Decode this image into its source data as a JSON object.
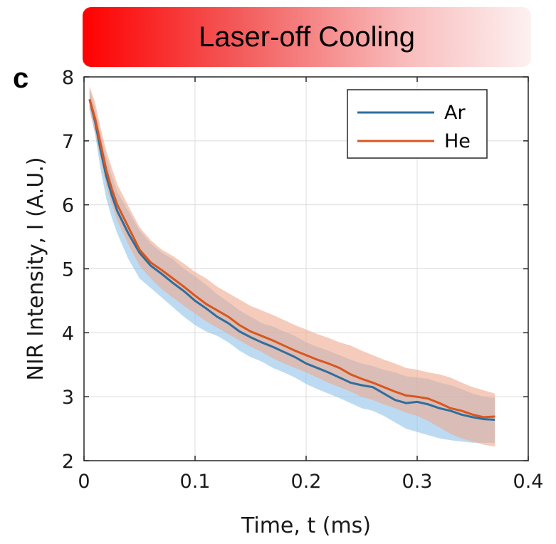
{
  "banner": {
    "title": "Laser-off Cooling"
  },
  "panel_label": "c",
  "colors": {
    "ar": "#2e6e9e",
    "he": "#d9561e",
    "ar_band": "#8fc3ea",
    "he_band": "#efa98d"
  },
  "chart_data": {
    "type": "line",
    "title": "",
    "xlabel": "Time, t (ms)",
    "ylabel": "NIR Intensity, I (A.U.)",
    "xlim": [
      0,
      0.4
    ],
    "ylim": [
      2,
      8
    ],
    "xticks": [
      0,
      0.1,
      0.2,
      0.3,
      0.4
    ],
    "xtick_labels": [
      "0",
      "0.1",
      "0.2",
      "0.3",
      "0.4"
    ],
    "yticks": [
      2,
      3,
      4,
      5,
      6,
      7,
      8
    ],
    "ytick_labels": [
      "2",
      "3",
      "4",
      "5",
      "6",
      "7",
      "8"
    ],
    "grid": true,
    "legend_position": "top-right",
    "series": [
      {
        "name": "Ar",
        "x": [
          0.005,
          0.01,
          0.015,
          0.02,
          0.025,
          0.03,
          0.04,
          0.05,
          0.06,
          0.07,
          0.08,
          0.09,
          0.1,
          0.11,
          0.12,
          0.13,
          0.14,
          0.15,
          0.16,
          0.17,
          0.18,
          0.19,
          0.2,
          0.21,
          0.22,
          0.23,
          0.24,
          0.25,
          0.26,
          0.27,
          0.28,
          0.29,
          0.3,
          0.31,
          0.32,
          0.33,
          0.34,
          0.35,
          0.36,
          0.37
        ],
        "y": [
          7.65,
          7.3,
          6.85,
          6.45,
          6.15,
          5.9,
          5.55,
          5.25,
          5.05,
          4.92,
          4.78,
          4.65,
          4.5,
          4.38,
          4.25,
          4.15,
          4.02,
          3.93,
          3.85,
          3.78,
          3.7,
          3.62,
          3.52,
          3.45,
          3.38,
          3.3,
          3.22,
          3.18,
          3.15,
          3.05,
          2.95,
          2.9,
          2.92,
          2.88,
          2.82,
          2.78,
          2.72,
          2.68,
          2.65,
          2.64
        ],
        "lower": [
          7.5,
          7.1,
          6.55,
          6.1,
          5.8,
          5.55,
          5.15,
          4.85,
          4.7,
          4.55,
          4.4,
          4.25,
          4.12,
          4.02,
          3.95,
          3.85,
          3.72,
          3.62,
          3.55,
          3.45,
          3.38,
          3.3,
          3.2,
          3.12,
          3.05,
          2.98,
          2.9,
          2.82,
          2.78,
          2.7,
          2.6,
          2.5,
          2.45,
          2.4,
          2.35,
          2.32,
          2.3,
          2.28,
          2.28,
          2.28
        ],
        "upper": [
          7.82,
          7.5,
          7.1,
          6.75,
          6.45,
          6.2,
          5.9,
          5.6,
          5.4,
          5.25,
          5.15,
          5.0,
          4.88,
          4.75,
          4.6,
          4.48,
          4.35,
          4.25,
          4.15,
          4.1,
          4.02,
          3.95,
          3.85,
          3.78,
          3.72,
          3.65,
          3.58,
          3.52,
          3.48,
          3.42,
          3.38,
          3.32,
          3.3,
          3.28,
          3.22,
          3.18,
          3.12,
          3.05,
          3.0,
          2.98
        ]
      },
      {
        "name": "He",
        "x": [
          0.005,
          0.01,
          0.015,
          0.02,
          0.025,
          0.03,
          0.04,
          0.05,
          0.06,
          0.07,
          0.08,
          0.09,
          0.1,
          0.11,
          0.12,
          0.13,
          0.14,
          0.15,
          0.16,
          0.17,
          0.18,
          0.19,
          0.2,
          0.21,
          0.22,
          0.23,
          0.24,
          0.25,
          0.26,
          0.27,
          0.28,
          0.29,
          0.3,
          0.31,
          0.32,
          0.33,
          0.34,
          0.35,
          0.36,
          0.37
        ],
        "y": [
          7.65,
          7.35,
          6.95,
          6.55,
          6.25,
          6.0,
          5.65,
          5.3,
          5.1,
          4.98,
          4.85,
          4.72,
          4.58,
          4.45,
          4.35,
          4.25,
          4.12,
          4.02,
          3.95,
          3.88,
          3.8,
          3.72,
          3.65,
          3.58,
          3.52,
          3.45,
          3.35,
          3.28,
          3.22,
          3.15,
          3.08,
          3.02,
          3.0,
          2.97,
          2.9,
          2.82,
          2.78,
          2.72,
          2.68,
          2.69
        ],
        "lower": [
          7.48,
          7.12,
          6.7,
          6.3,
          6.0,
          5.75,
          5.38,
          5.05,
          4.85,
          4.68,
          4.55,
          4.42,
          4.3,
          4.18,
          4.08,
          3.98,
          3.88,
          3.78,
          3.7,
          3.6,
          3.52,
          3.45,
          3.38,
          3.3,
          3.22,
          3.15,
          3.08,
          3.0,
          2.95,
          2.88,
          2.82,
          2.75,
          2.7,
          2.62,
          2.52,
          2.42,
          2.35,
          2.3,
          2.25,
          2.22
        ],
        "upper": [
          7.85,
          7.6,
          7.2,
          6.85,
          6.58,
          6.32,
          5.98,
          5.65,
          5.45,
          5.3,
          5.2,
          5.08,
          4.95,
          4.85,
          4.72,
          4.62,
          4.52,
          4.42,
          4.35,
          4.28,
          4.2,
          4.12,
          4.05,
          3.98,
          3.92,
          3.85,
          3.8,
          3.72,
          3.65,
          3.58,
          3.52,
          3.45,
          3.42,
          3.38,
          3.35,
          3.3,
          3.22,
          3.15,
          3.1,
          3.05
        ]
      }
    ]
  }
}
